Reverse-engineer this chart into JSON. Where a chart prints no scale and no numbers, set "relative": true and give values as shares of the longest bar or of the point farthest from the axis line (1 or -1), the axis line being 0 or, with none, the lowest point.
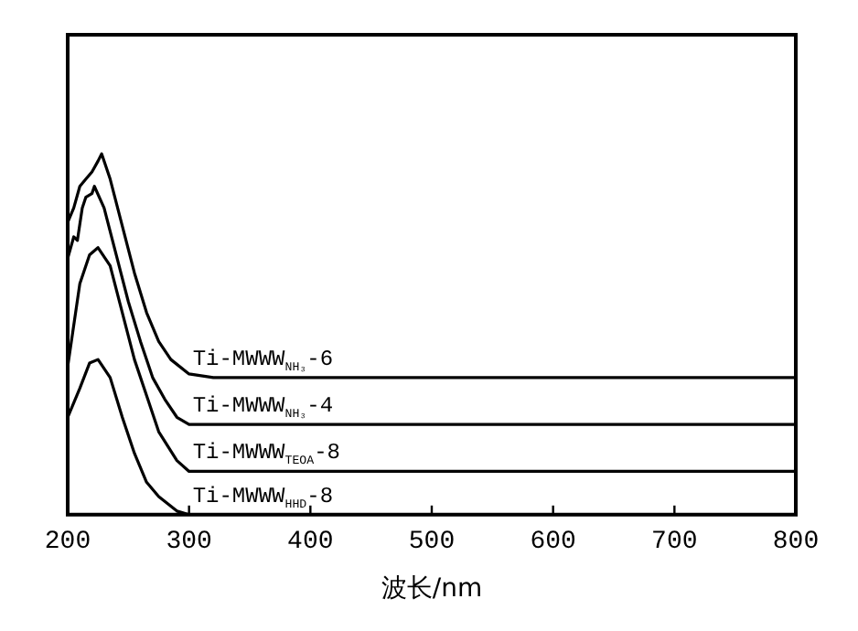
{
  "chart_data": {
    "type": "line",
    "relative": true,
    "xlabel": "波长/nm",
    "xlim": [
      200,
      800
    ],
    "xticks": [
      200,
      300,
      400,
      500,
      600,
      700,
      800
    ],
    "tick_labels": "x",
    "grid": false,
    "legend": false,
    "marker": "none",
    "line_style": "solid",
    "series": [
      {
        "name": "Ti-MWWW$_{NH₃}$-6",
        "color": "#000000",
        "x": [
          200,
          205,
          210,
          215,
          220,
          225,
          228,
          235,
          245,
          255,
          265,
          275,
          285,
          300,
          320,
          400,
          500,
          600,
          700,
          800
        ],
        "values": [
          0.81,
          0.85,
          0.91,
          0.93,
          0.95,
          0.98,
          1,
          0.93,
          0.8,
          0.67,
          0.56,
          0.48,
          0.43,
          0.39,
          0.38,
          0.38,
          0.38,
          0.38,
          0.38,
          0.38
        ]
      },
      {
        "name": "Ti-MWWW$_{NH₃}$-4",
        "color": "#000000",
        "x": [
          200,
          205,
          208,
          212,
          215,
          220,
          222,
          230,
          240,
          250,
          260,
          270,
          280,
          290,
          300,
          320,
          800
        ],
        "values": [
          0.71,
          0.77,
          0.76,
          0.85,
          0.88,
          0.89,
          0.91,
          0.85,
          0.72,
          0.59,
          0.48,
          0.38,
          0.32,
          0.27,
          0.25,
          0.25,
          0.25
        ]
      },
      {
        "name": "Ti-MWWW$_{TEOA}$-8",
        "color": "#000000",
        "x": [
          200,
          210,
          218,
          225,
          235,
          245,
          255,
          265,
          275,
          290,
          300,
          800
        ],
        "values": [
          0.41,
          0.64,
          0.72,
          0.74,
          0.69,
          0.56,
          0.43,
          0.33,
          0.23,
          0.15,
          0.12,
          0.12
        ]
      },
      {
        "name": "Ti-MWWW$_{HHD}$-8",
        "color": "#000000",
        "x": [
          200,
          210,
          218,
          225,
          235,
          245,
          255,
          265,
          275,
          290,
          300,
          800
        ],
        "values": [
          0.27,
          0.35,
          0.42,
          0.43,
          0.38,
          0.27,
          0.17,
          0.09,
          0.05,
          0.01,
          0,
          0
        ]
      }
    ]
  }
}
